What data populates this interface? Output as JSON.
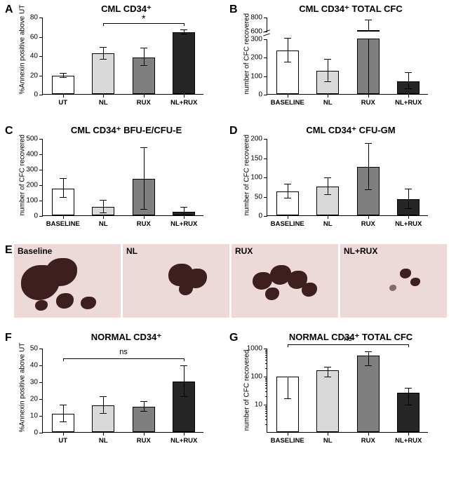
{
  "colors": {
    "ut": "#ffffff",
    "nl": "#d9d9d9",
    "rux": "#7f7f7f",
    "nlrux": "#262626",
    "baseline": "#ffffff",
    "axis": "#000000",
    "photo_bg": "#eed9d9",
    "blob": "#3d1f1f"
  },
  "fonts": {
    "title": 13,
    "axis": 10,
    "tick": 10,
    "xlabel": 9.5
  },
  "panels": {
    "A": {
      "label": "A",
      "title": "CML CD34⁺",
      "type": "bar",
      "ylabel": "%Annexin positive above UT",
      "ylim": [
        0,
        80
      ],
      "ytick_step": 20,
      "categories": [
        "UT",
        "NL",
        "RUX",
        "NL+RUX"
      ],
      "values": [
        19,
        42,
        38,
        64
      ],
      "errors": [
        2,
        6,
        9,
        2
      ],
      "bar_colors": [
        "#ffffff",
        "#d9d9d9",
        "#7f7f7f",
        "#262626"
      ],
      "sig": {
        "from": 1,
        "to": 3,
        "label": "*",
        "y": 74
      }
    },
    "B": {
      "label": "B",
      "title": "CML CD34⁺ TOTAL CFC",
      "type": "bar-broken",
      "ylabel": "number of CFC recovered",
      "lower_ylim": [
        0,
        300
      ],
      "lower_ytick_step": 100,
      "upper_ylim": [
        600,
        800
      ],
      "upper_yticks": [
        600,
        800
      ],
      "categories": [
        "BASELINE",
        "NL",
        "RUX",
        "NL+RUX"
      ],
      "values": [
        235,
        125,
        365,
        70
      ],
      "errors": [
        65,
        60,
        400,
        45
      ],
      "bar_colors": [
        "#ffffff",
        "#d9d9d9",
        "#7f7f7f",
        "#262626"
      ]
    },
    "C": {
      "label": "C",
      "title": "CML CD34⁺ BFU-E/CFU-E",
      "type": "bar",
      "ylabel": "number of CFC recovered",
      "ylim": [
        0,
        500
      ],
      "ytick_step": 100,
      "categories": [
        "BASELINE",
        "NL",
        "RUX",
        "NL+RUX"
      ],
      "values": [
        175,
        55,
        235,
        25
      ],
      "errors": [
        60,
        40,
        200,
        25
      ],
      "bar_colors": [
        "#ffffff",
        "#d9d9d9",
        "#7f7f7f",
        "#262626"
      ]
    },
    "D": {
      "label": "D",
      "title": "CML CD34⁺ CFU-GM",
      "type": "bar",
      "ylabel": "number of CFC recovered",
      "ylim": [
        0,
        200
      ],
      "ytick_step": 50,
      "categories": [
        "BASELINE",
        "NL",
        "RUX",
        "NL+RUX"
      ],
      "values": [
        62,
        75,
        125,
        42
      ],
      "errors": [
        18,
        22,
        60,
        25
      ],
      "bar_colors": [
        "#ffffff",
        "#d9d9d9",
        "#7f7f7f",
        "#262626"
      ]
    },
    "E": {
      "label": "E",
      "type": "photos",
      "images": [
        {
          "label": "Baseline"
        },
        {
          "label": "NL"
        },
        {
          "label": "RUX"
        },
        {
          "label": "NL+RUX"
        }
      ]
    },
    "F": {
      "label": "F",
      "title": "NORMAL CD34⁺",
      "type": "bar",
      "ylabel": "%Annexin positive above UT",
      "ylim": [
        0,
        50
      ],
      "ytick_step": 10,
      "categories": [
        "UT",
        "NL",
        "RUX",
        "NL+RUX"
      ],
      "values": [
        11,
        16,
        15,
        30
      ],
      "errors": [
        5,
        5,
        3,
        9
      ],
      "bar_colors": [
        "#ffffff",
        "#d9d9d9",
        "#7f7f7f",
        "#262626"
      ],
      "sig": {
        "from": 0,
        "to": 3,
        "label": "ns",
        "y": 44
      }
    },
    "G": {
      "label": "G",
      "title": "NORMAL CD34⁺ TOTAL CFC",
      "type": "bar-log",
      "ylabel": "number of CFC recovered",
      "ylim": [
        1,
        1000
      ],
      "yticks": [
        10,
        100,
        1000
      ],
      "categories": [
        "BASELINE",
        "NL",
        "RUX",
        "NL+RUX"
      ],
      "values": [
        97,
        160,
        530,
        25
      ],
      "errors_low": [
        80,
        60,
        280,
        15
      ],
      "errors_high": [
        0,
        60,
        280,
        15
      ],
      "bar_colors": [
        "#ffffff",
        "#d9d9d9",
        "#7f7f7f",
        "#262626"
      ],
      "sig": {
        "from": 0,
        "to": 3,
        "label": "ns",
        "y": 1000
      }
    }
  }
}
